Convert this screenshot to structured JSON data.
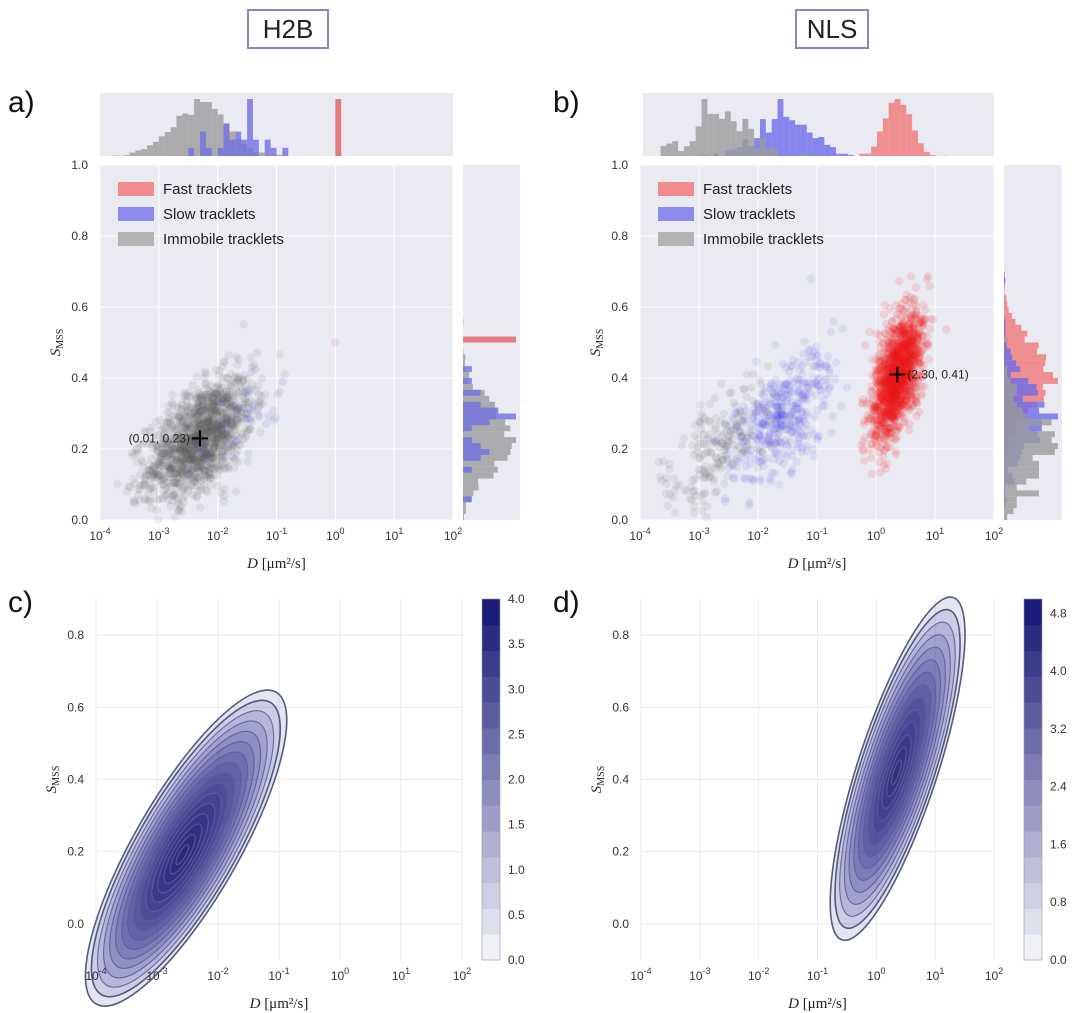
{
  "headers": [
    "H2B",
    "NLS"
  ],
  "panel_labels": [
    "a)",
    "b)",
    "c)",
    "d)"
  ],
  "chart_data": [
    {
      "id": "a",
      "type": "scatter",
      "xscale": "log",
      "xlim": [
        0.0001,
        100
      ],
      "ylim": [
        0.0,
        1.0
      ],
      "xticks": [
        "10-4",
        "10-3",
        "10-2",
        "10-1",
        "100",
        "101",
        "102"
      ],
      "yticks": [
        "0.0",
        "0.2",
        "0.4",
        "0.6",
        "0.8",
        "1.0"
      ],
      "xlabel": "D [μm²/s]",
      "ylabel": "SMSS",
      "legend": [
        "Fast tracklets",
        "Slow tracklets",
        "Immobile tracklets"
      ],
      "legend_position": "top-left",
      "series": [
        {
          "name": "Immobile tracklets",
          "color": "#555555",
          "center": [
            0.005,
            0.23
          ],
          "count": 1400
        },
        {
          "name": "Slow tracklets",
          "color": "#3b3bd8",
          "center": [
            0.02,
            0.25
          ],
          "count": 30
        },
        {
          "name": "Fast tracklets",
          "color": "#e03030",
          "center": [
            1.0,
            0.5
          ],
          "count": 1
        }
      ],
      "annotation": {
        "x": 0.005,
        "y": 0.23,
        "label": "(0.01, 0.23)"
      },
      "marginals": "histograms on top (x) and right (y)"
    },
    {
      "id": "b",
      "type": "scatter",
      "xscale": "log",
      "xlim": [
        0.0001,
        100
      ],
      "ylim": [
        0.0,
        1.0
      ],
      "xticks": [
        "10-4",
        "10-3",
        "10-2",
        "10-1",
        "100",
        "101",
        "102"
      ],
      "yticks": [
        "0.0",
        "0.2",
        "0.4",
        "0.6",
        "0.8",
        "1.0"
      ],
      "xlabel": "D [μm²/s]",
      "ylabel": "SMSS",
      "legend": [
        "Fast tracklets",
        "Slow tracklets",
        "Immobile tracklets"
      ],
      "legend_position": "top-left",
      "series": [
        {
          "name": "Fast tracklets",
          "color": "#ee1a1a",
          "center": [
            2.3,
            0.41
          ],
          "count": 3000
        },
        {
          "name": "Slow tracklets",
          "color": "#4646e0",
          "center": [
            0.03,
            0.3
          ],
          "count": 400
        },
        {
          "name": "Immobile tracklets",
          "color": "#555555",
          "center": [
            0.002,
            0.2
          ],
          "count": 200
        }
      ],
      "annotation": {
        "x": 2.3,
        "y": 0.41,
        "label": "(2.30, 0.41)"
      },
      "marginals": "histograms on top (x) and right (y)"
    },
    {
      "id": "c",
      "type": "contour",
      "xscale": "log",
      "xlim": [
        0.0001,
        100
      ],
      "ylim": [
        -0.1,
        0.9
      ],
      "xticks": [
        "10-4",
        "10-3",
        "10-2",
        "10-1",
        "100",
        "101",
        "102"
      ],
      "yticks": [
        "0.0",
        "0.2",
        "0.4",
        "0.6",
        "0.8"
      ],
      "xlabel": "D [μm²/s]",
      "ylabel": "SMSS",
      "peak": [
        0.003,
        0.21
      ],
      "colorbar": {
        "min": 0.0,
        "max": 4.0,
        "ticks": [
          "0.0",
          "0.5",
          "1.0",
          "1.5",
          "2.0",
          "2.5",
          "3.0",
          "3.5",
          "4.0"
        ]
      }
    },
    {
      "id": "d",
      "type": "contour",
      "xscale": "log",
      "xlim": [
        0.0001,
        100
      ],
      "ylim": [
        -0.1,
        0.9
      ],
      "xticks": [
        "10-4",
        "10-3",
        "10-2",
        "10-1",
        "100",
        "101",
        "102"
      ],
      "yticks": [
        "0.0",
        "0.2",
        "0.4",
        "0.6",
        "0.8"
      ],
      "xlabel": "D [μm²/s]",
      "ylabel": "SMSS",
      "peak": [
        2.3,
        0.43
      ],
      "colorbar": {
        "min": 0.0,
        "max": 5.0,
        "ticks": [
          "0.0",
          "0.8",
          "1.6",
          "2.4",
          "3.2",
          "4.0",
          "4.8"
        ]
      }
    }
  ]
}
